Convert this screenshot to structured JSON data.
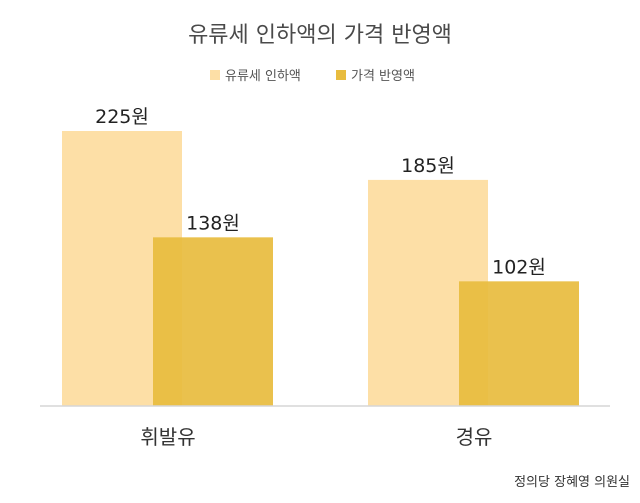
{
  "chart_data": {
    "type": "bar",
    "title": "유류세 인하액의 가격 반영액",
    "categories": [
      "휘발유",
      "경유"
    ],
    "series": [
      {
        "name": "유류세 인하액",
        "values": [
          225,
          185
        ],
        "labels": [
          "225원",
          "185원"
        ],
        "color": "#FDDFA6"
      },
      {
        "name": "가격 반영액",
        "values": [
          138,
          102
        ],
        "labels": [
          "138원",
          "102원"
        ],
        "color": "#E8BC3E"
      }
    ],
    "ylim": [
      0,
      250
    ],
    "legend_position": "top",
    "grid": false,
    "xlabel": "",
    "ylabel": ""
  },
  "source_credit": "정의당 장혜영 의원실"
}
